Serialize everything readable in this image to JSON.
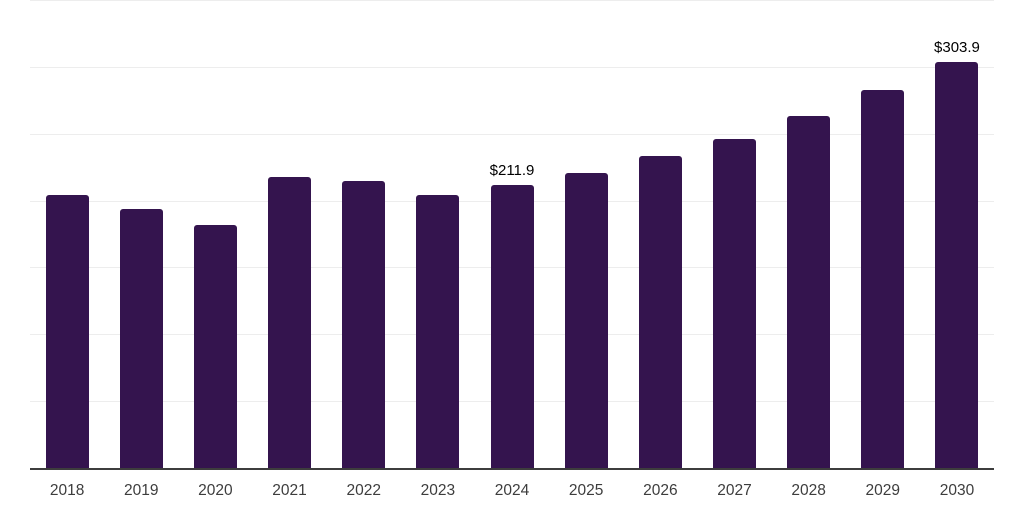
{
  "chart_data": {
    "type": "bar",
    "title": "",
    "xlabel": "",
    "ylabel": "",
    "categories": [
      "2018",
      "2019",
      "2020",
      "2021",
      "2022",
      "2023",
      "2024",
      "2025",
      "2026",
      "2027",
      "2028",
      "2029",
      "2030"
    ],
    "values": [
      204.0,
      193.5,
      181.5,
      218.0,
      214.5,
      204.0,
      211.9,
      220.5,
      233.0,
      246.0,
      263.0,
      283.0,
      303.9
    ],
    "data_labels": [
      "",
      "",
      "",
      "",
      "",
      "",
      "$211.9",
      "",
      "",
      "",
      "",
      "",
      "$303.9"
    ],
    "ylim": [
      0,
      350
    ],
    "grid_step": 50,
    "grid": true,
    "legend_position": "none",
    "colors": {
      "bar": "#34144e",
      "gridline": "#ededed",
      "axis_line": "#3d3d3d",
      "tick_label": "#3d3d3d",
      "value_label": "#000000",
      "background": "#ffffff"
    }
  }
}
